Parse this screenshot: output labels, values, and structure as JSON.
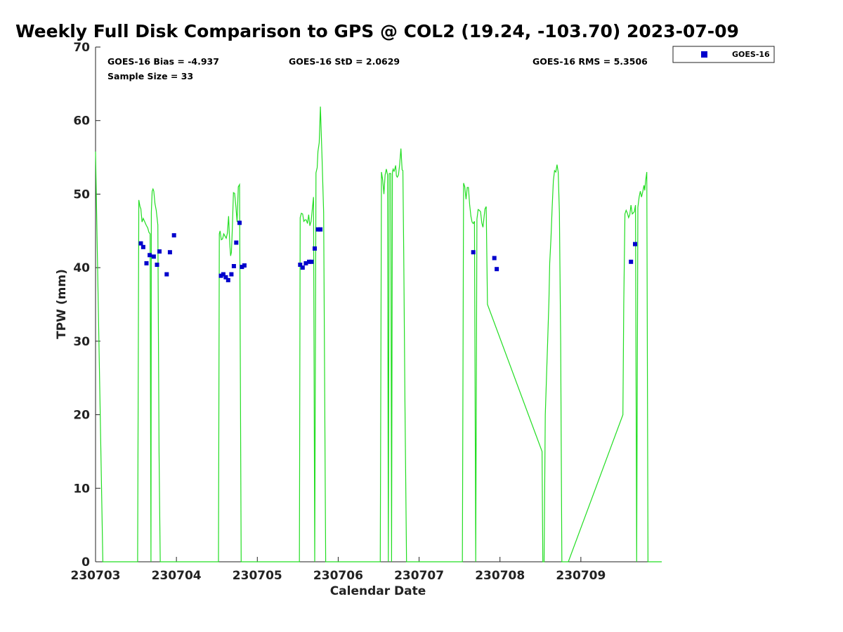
{
  "chart_data": {
    "type": "line",
    "title": "Weekly Full Disk Comparison to GPS @ COL2 (19.24, -103.70) 2023-07-09",
    "xlabel": "Calendar Date",
    "ylabel": "TPW (mm)",
    "xlim": [
      230703,
      230710
    ],
    "ylim": [
      0,
      70
    ],
    "x_ticks": [
      "230703",
      "230704",
      "230705",
      "230706",
      "230707",
      "230708",
      "230709"
    ],
    "y_ticks": [
      0,
      10,
      20,
      30,
      40,
      50,
      60,
      70
    ],
    "grid": false,
    "legend_position": "top-right",
    "stats": {
      "bias": "GOES-16 Bias = -4.937",
      "std": "GOES-16 StD = 2.0629",
      "rms": "GOES-16 RMS = 5.3506",
      "sample": "Sample Size = 33"
    },
    "colors": {
      "gps": "#22dd22",
      "goes": "#0000cc"
    },
    "series": [
      {
        "kind": "line",
        "x": [
          0.0,
          0.09,
          0.52,
          0.535,
          0.55,
          0.56,
          0.575,
          0.59,
          0.61,
          0.625,
          0.645,
          0.66,
          0.675,
          0.685,
          0.69,
          0.7,
          0.71,
          0.72,
          0.735,
          0.75,
          0.77,
          0.785,
          0.8,
          0.815,
          0.835,
          0.845,
          0.845,
          1.52,
          1.53,
          1.54,
          1.555,
          1.57,
          1.585,
          1.6,
          1.615,
          1.63,
          1.645,
          1.66,
          1.67,
          1.68,
          1.69,
          1.705,
          1.72,
          1.735,
          1.75,
          1.765,
          1.78,
          1.8,
          1.815,
          1.83,
          1.845,
          2.52,
          2.53,
          2.545,
          2.56,
          2.575,
          2.59,
          2.605,
          2.62,
          2.635,
          2.65,
          2.665,
          2.68,
          2.695,
          2.71,
          2.725,
          2.74,
          2.75,
          2.765,
          2.78,
          2.8,
          2.82,
          2.845,
          3.52,
          3.535,
          3.55,
          3.565,
          3.58,
          3.595,
          3.61,
          3.62,
          3.63,
          3.64,
          3.65,
          3.66,
          3.67,
          3.68,
          3.69,
          3.7,
          3.71,
          3.72,
          3.73,
          3.745,
          3.76,
          3.775,
          3.79,
          3.8,
          3.81,
          3.825,
          3.845,
          4.52,
          4.535,
          4.55,
          4.565,
          4.58,
          4.595,
          4.61,
          4.625,
          4.64,
          4.655,
          4.67,
          4.685,
          4.7,
          4.715,
          4.73,
          4.745,
          4.76,
          4.775,
          4.79,
          4.805,
          4.815,
          4.83,
          4.845,
          5.52,
          5.53,
          5.545,
          5.56,
          5.575,
          5.59,
          5.605,
          5.615,
          5.63,
          5.645,
          5.66,
          5.675,
          5.69,
          5.705,
          5.72,
          5.735,
          5.75,
          5.765,
          5.78,
          5.8,
          5.815,
          5.83,
          5.845,
          6.52,
          6.53,
          6.545,
          6.56,
          6.575,
          6.59,
          6.605,
          6.62,
          6.635,
          6.645,
          6.66,
          6.675,
          6.69,
          6.705,
          6.72,
          6.735,
          6.75,
          6.765,
          6.78,
          6.79,
          6.8,
          6.815,
          6.83,
          6.845,
          6.86,
          6.875,
          6.89,
          6.905,
          6.92,
          6.935,
          6.95,
          6.965,
          6.98,
          7.0
        ],
        "y": [
          55.8,
          0,
          0,
          49.2,
          48.3,
          48.0,
          46.2,
          46.7,
          46.2,
          45.8,
          45.4,
          44.8,
          44.6,
          0,
          47.5,
          50.4,
          50.7,
          50.4,
          48.7,
          47.8,
          45.8,
          15.0,
          0,
          0,
          0,
          0,
          0,
          0,
          44.6,
          45.0,
          43.8,
          43.9,
          44.6,
          44.3,
          44.0,
          44.7,
          47.0,
          43.2,
          41.6,
          42.1,
          45.0,
          50.2,
          50.1,
          48.3,
          46.2,
          51.0,
          51.3,
          0,
          0,
          0,
          0,
          0,
          46.8,
          47.4,
          47.3,
          46.3,
          46.5,
          46.5,
          46.0,
          47.2,
          45.7,
          46.3,
          48.0,
          49.6,
          0,
          52.9,
          53.6,
          55.8,
          57.0,
          61.9,
          55.0,
          47.5,
          0,
          0,
          53.0,
          51.9,
          50.0,
          52.6,
          53.4,
          52.6,
          0,
          52.8,
          52.8,
          52.8,
          0,
          53.1,
          53.4,
          53.1,
          53.4,
          53.9,
          52.5,
          52.3,
          52.6,
          54.0,
          56.2,
          53.3,
          53.2,
          42.0,
          22.0,
          0,
          0,
          0,
          51.5,
          51.0,
          49.3,
          50.9,
          50.9,
          48.6,
          47.0,
          46.2,
          46.0,
          46.3,
          0,
          46.6,
          47.9,
          47.8,
          47.6,
          46.1,
          45.5,
          47.1,
          48.0,
          48.3,
          35.0,
          15.0,
          0,
          0,
          20.0,
          25.0,
          30.0,
          35.5,
          40.6,
          44.0,
          48.2,
          51.8,
          53.2,
          53.0,
          54.0,
          53.0,
          47.5,
          30.0,
          0,
          0,
          0,
          0,
          0,
          0,
          20.0,
          35.0,
          47.3,
          47.8,
          47.4,
          46.8,
          47.2,
          48.5,
          47.3,
          47.4,
          47.6,
          48.5,
          0,
          48.2,
          49.6,
          50.4,
          49.6,
          50.3,
          51.2,
          50.5,
          51.8,
          53.0,
          0,
          0,
          0,
          0,
          0,
          0,
          0,
          0,
          0,
          0,
          0,
          0
        ]
      },
      {
        "kind": "scatter",
        "name": "GOES-16",
        "x": [
          0.56,
          0.59,
          0.63,
          0.67,
          0.72,
          0.76,
          0.79,
          0.88,
          0.92,
          0.97,
          1.55,
          1.58,
          1.61,
          1.64,
          1.68,
          1.71,
          1.74,
          1.78,
          1.81,
          1.84,
          2.53,
          2.56,
          2.6,
          2.64,
          2.67,
          2.71,
          2.75,
          2.78,
          4.67,
          4.93,
          4.96,
          6.62,
          6.67
        ],
        "y": [
          43.3,
          42.8,
          40.6,
          41.7,
          41.5,
          40.4,
          42.2,
          39.1,
          42.1,
          44.4,
          38.9,
          39.1,
          38.7,
          38.3,
          39.1,
          40.2,
          43.4,
          46.1,
          40.1,
          40.3,
          40.4,
          40.0,
          40.6,
          40.8,
          40.8,
          42.6,
          45.2,
          45.2,
          42.1,
          41.3,
          39.8,
          40.8,
          43.2
        ]
      }
    ],
    "legend": {
      "entries": [
        "GOES-16"
      ]
    }
  }
}
